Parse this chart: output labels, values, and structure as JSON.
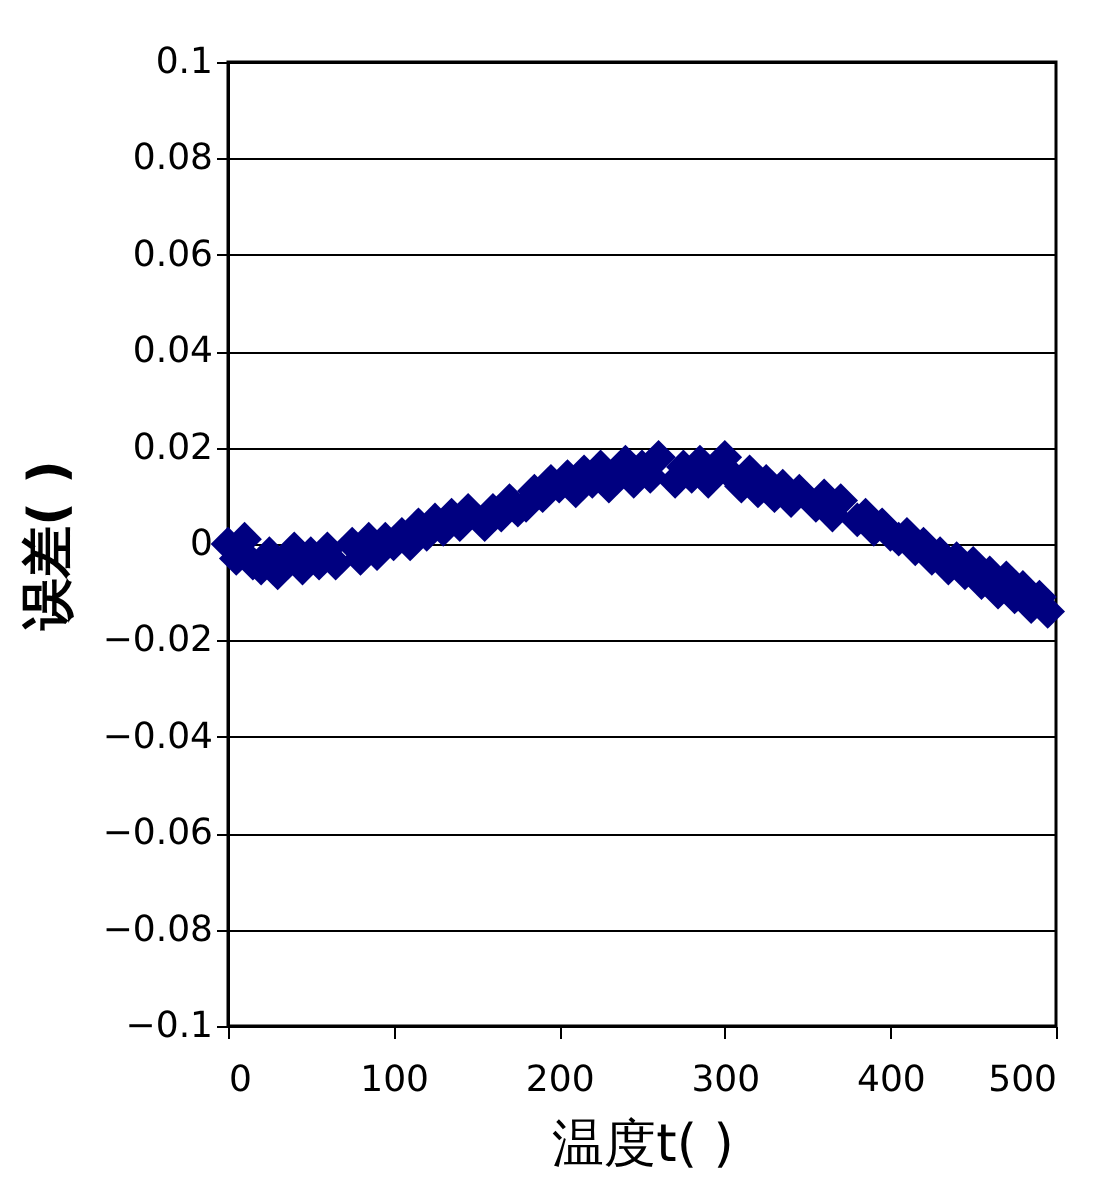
{
  "chart_data": {
    "type": "scatter",
    "xlabel": "温度t(  )",
    "ylabel": "误差(  )",
    "x": [
      0,
      5,
      10,
      15,
      20,
      25,
      30,
      35,
      40,
      45,
      50,
      55,
      60,
      65,
      75,
      80,
      85,
      90,
      95,
      100,
      105,
      110,
      115,
      120,
      125,
      130,
      135,
      140,
      145,
      155,
      160,
      165,
      170,
      175,
      180,
      185,
      190,
      195,
      200,
      205,
      210,
      215,
      220,
      225,
      230,
      235,
      240,
      245,
      250,
      255,
      260,
      270,
      275,
      280,
      285,
      290,
      295,
      300,
      305,
      310,
      315,
      320,
      325,
      330,
      335,
      340,
      345,
      355,
      360,
      365,
      370,
      380,
      385,
      390,
      395,
      400,
      405,
      410,
      415,
      420,
      425,
      430,
      435,
      440,
      445,
      450,
      455,
      460,
      465,
      470,
      475,
      480,
      485,
      490,
      495
    ],
    "series": [
      {
        "color": "#000080",
        "values": [
          0,
          -0.003,
          0.001,
          -0.004,
          -0.005,
          -0.002,
          -0.006,
          -0.003,
          -0.001,
          -0.005,
          -0.002,
          -0.004,
          -0.001,
          -0.004,
          0,
          -0.003,
          0.001,
          -0.002,
          0.001,
          0,
          0.002,
          0,
          0.004,
          0.002,
          0.005,
          0.003,
          0.006,
          0.004,
          0.007,
          0.004,
          0.007,
          0.006,
          0.009,
          0.007,
          0.008,
          0.011,
          0.01,
          0.013,
          0.012,
          0.014,
          0.011,
          0.015,
          0.013,
          0.016,
          0.012,
          0.015,
          0.017,
          0.013,
          0.016,
          0.014,
          0.018,
          0.013,
          0.016,
          0.014,
          0.017,
          0.013,
          0.015,
          0.018,
          0.014,
          0.012,
          0.015,
          0.011,
          0.013,
          0.01,
          0.012,
          0.009,
          0.011,
          0.008,
          0.01,
          0.006,
          0.009,
          0.005,
          0.006,
          0.003,
          0.004,
          0.002,
          0.001,
          0.002,
          -0.001,
          0,
          -0.003,
          -0.002,
          -0.005,
          -0.003,
          -0.006,
          -0.004,
          -0.008,
          -0.006,
          -0.01,
          -0.007,
          -0.011,
          -0.009,
          -0.013,
          -0.011,
          -0.014
        ]
      }
    ],
    "marker": "diamond",
    "xlim": [
      0,
      500
    ],
    "xticks": [
      0,
      100,
      200,
      300,
      400,
      500
    ],
    "ylim": [
      -0.1,
      0.1
    ],
    "yticks": [
      -0.1,
      -0.08,
      -0.06,
      -0.04,
      -0.02,
      0,
      0.02,
      0.04,
      0.06,
      0.08,
      0.1
    ],
    "grid": "y"
  }
}
